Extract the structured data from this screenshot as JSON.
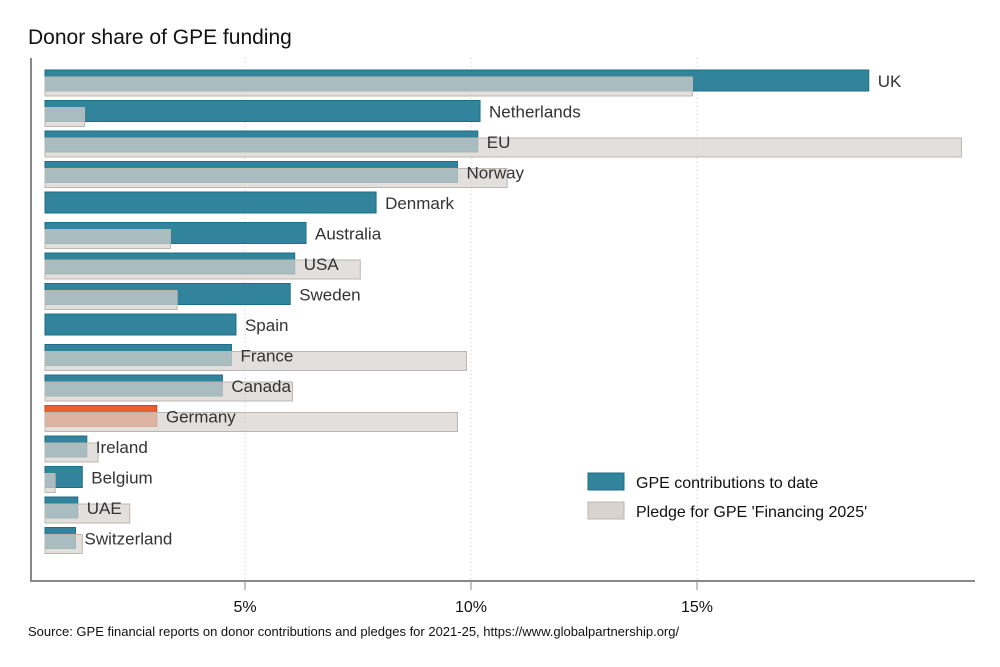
{
  "chart_data": {
    "type": "bar",
    "orientation": "horizontal",
    "title": "Donor share of GPE funding",
    "source": "Source: GPE financial reports on donor contributions and pledges for 2021-25, https://www.globalpartnership.org/",
    "xlim": [
      0.575,
      21.1
    ],
    "x_ticks": [
      5,
      10,
      15
    ],
    "x_tick_labels": [
      "5%",
      "10%",
      "15%"
    ],
    "grid": "vertical dotted at ticks",
    "legend_placement": "bottom-right",
    "categories": [
      "UK",
      "Netherlands",
      "EU",
      "Norway",
      "Denmark",
      "Australia",
      "USA",
      "Sweden",
      "Spain",
      "France",
      "Canada",
      "Germany",
      "Ireland",
      "Belgium",
      "UAE",
      "Switzerland"
    ],
    "highlight": "Germany",
    "series": [
      {
        "name": "GPE contributions to date",
        "color": "#31849B",
        "values": [
          18.8,
          10.2,
          10.15,
          9.7,
          7.9,
          6.35,
          6.1,
          6.0,
          4.8,
          4.7,
          4.5,
          3.05,
          1.5,
          1.4,
          1.3,
          1.25
        ]
      },
      {
        "name": "Pledge for GPE 'Financing 2025'",
        "color": "#d8d3cf",
        "values": [
          14.9,
          1.45,
          20.85,
          10.8,
          null,
          3.35,
          7.55,
          3.5,
          null,
          9.9,
          6.05,
          9.7,
          1.75,
          0.8,
          2.45,
          1.4
        ]
      }
    ],
    "colors": {
      "highlight": "#E8612C",
      "axis": "#888888"
    }
  }
}
